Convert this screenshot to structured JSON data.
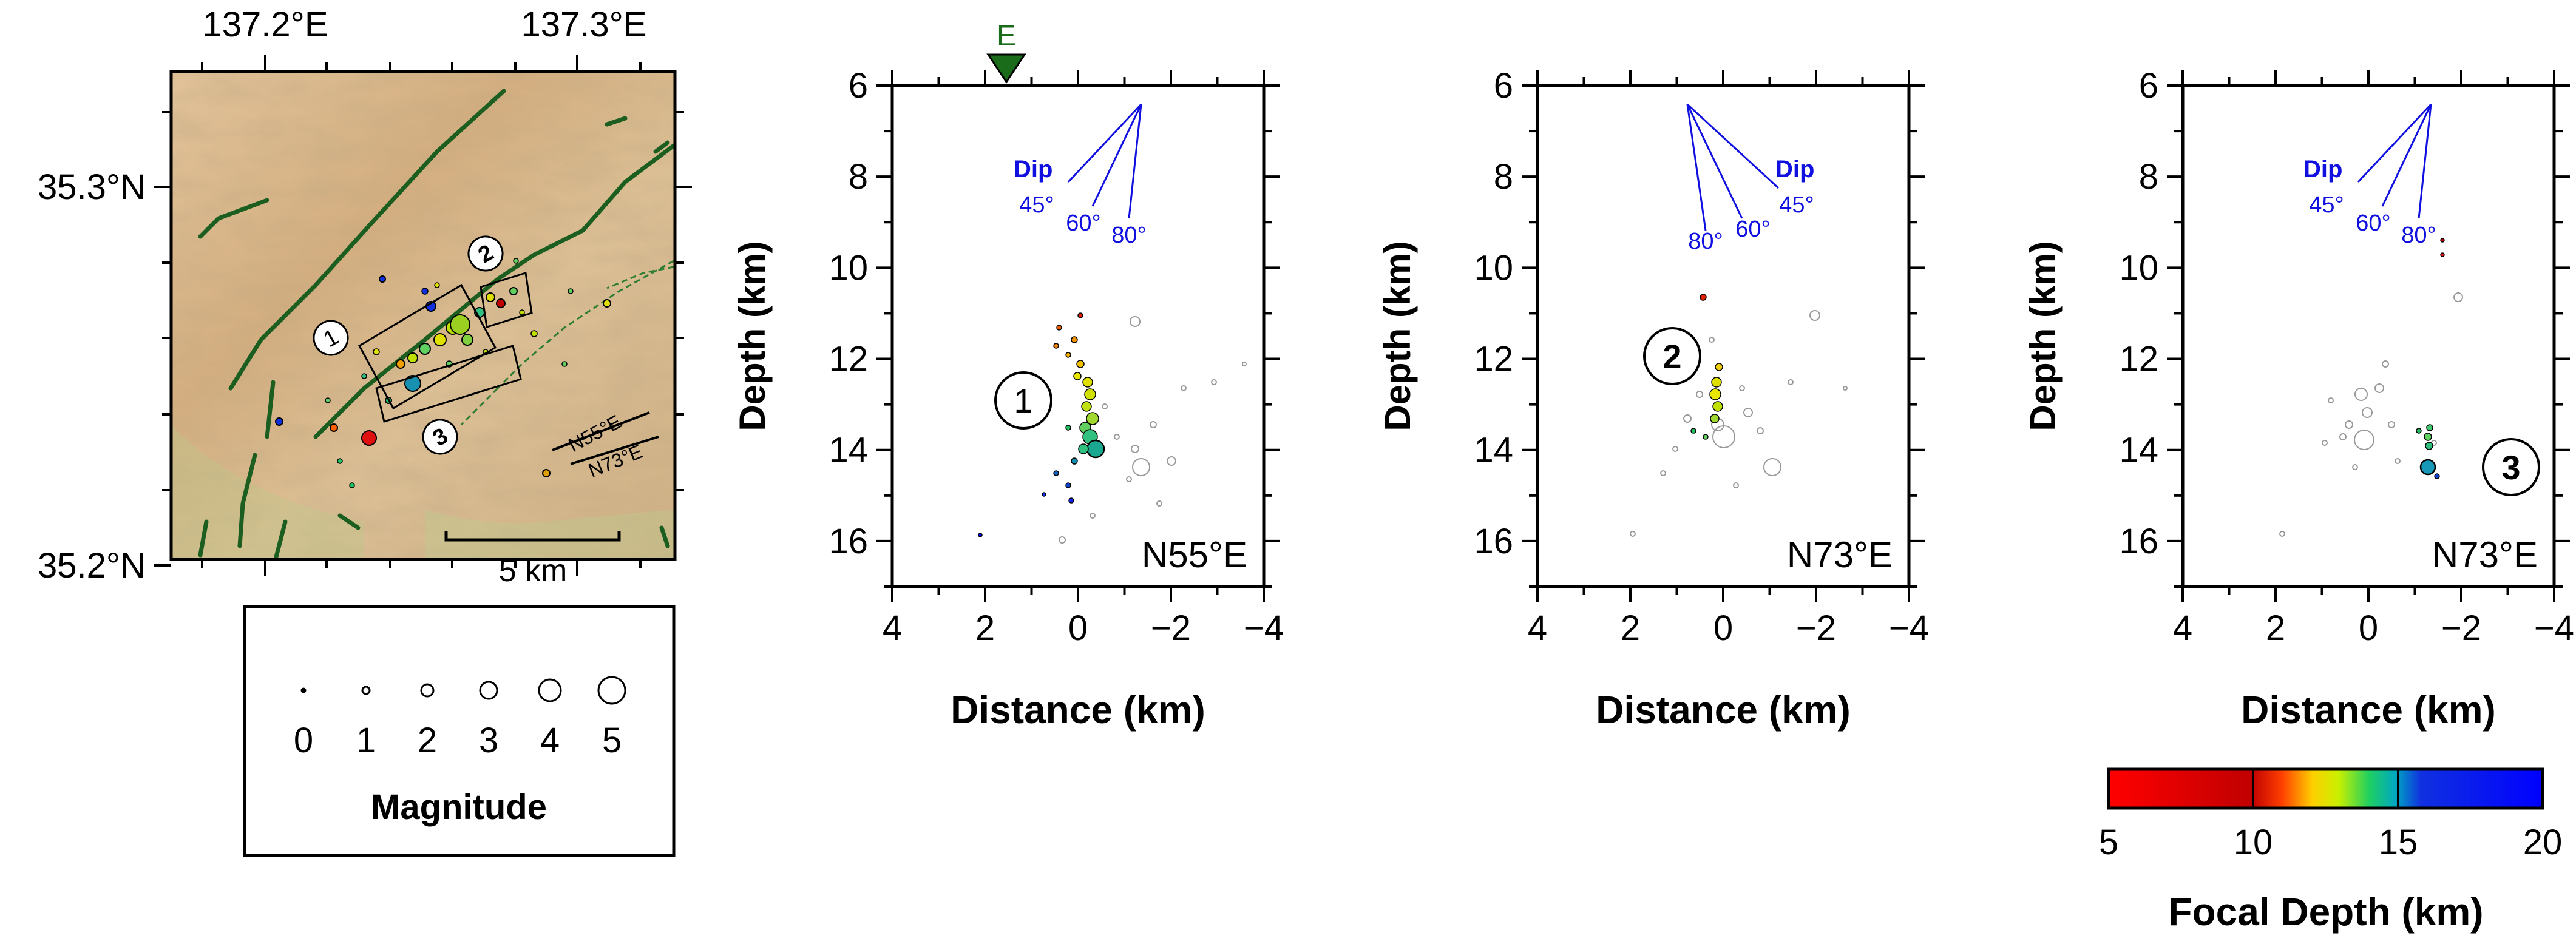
{
  "map": {
    "lon_ticks": [
      "137.2°E",
      "137.3°E"
    ],
    "lat_ticks": [
      "35.3°N",
      "35.2°N"
    ],
    "box_labels": [
      "1",
      "2",
      "3"
    ],
    "strike_labels": [
      "N55°E",
      "N73°E"
    ],
    "scale_label": "5 km",
    "fault_color": "#1b5e20",
    "terrain_color": "#d9b88c"
  },
  "magnitude_legend": {
    "values": [
      "0",
      "1",
      "2",
      "3",
      "4",
      "5"
    ],
    "title": "Magnitude"
  },
  "sections": [
    {
      "number": "1",
      "orientation": "N55°E",
      "ylabel": "Depth (km)",
      "xlabel": "Distance (km)",
      "x_ticks": [
        "4",
        "2",
        "0",
        "−2",
        "−4"
      ],
      "y_ticks": [
        "6",
        "8",
        "10",
        "12",
        "14",
        "16"
      ],
      "dip_label": "Dip",
      "dip_angles": [
        "45°",
        "60°",
        "80°"
      ],
      "marker_label": "E"
    },
    {
      "number": "2",
      "orientation": "N73°E",
      "ylabel": "Depth (km)",
      "xlabel": "Distance (km)",
      "x_ticks": [
        "4",
        "2",
        "0",
        "−2",
        "−4"
      ],
      "y_ticks": [
        "6",
        "8",
        "10",
        "12",
        "14",
        "16"
      ],
      "dip_label": "Dip",
      "dip_angles": [
        "80°",
        "60°",
        "45°"
      ]
    },
    {
      "number": "3",
      "orientation": "N73°E",
      "ylabel": "Depth (km)",
      "xlabel": "Distance (km)",
      "x_ticks": [
        "4",
        "2",
        "0",
        "−2",
        "−4"
      ],
      "y_ticks": [
        "6",
        "8",
        "10",
        "12",
        "14",
        "16"
      ],
      "dip_label": "Dip",
      "dip_angles": [
        "45°",
        "60°",
        "80°"
      ]
    }
  ],
  "colorbar": {
    "ticks": [
      "5",
      "10",
      "15",
      "20"
    ],
    "label": "Focal Depth (km)"
  },
  "colors": {
    "dip": "#1010e0",
    "marker": "#1a6b1a"
  }
}
